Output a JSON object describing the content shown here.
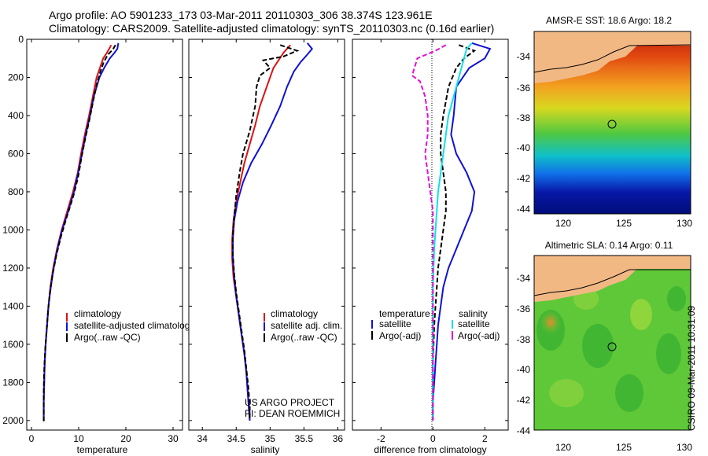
{
  "header": {
    "line1": "Argo profile: AO 5901233_173 03-Mar-2011 20110303_306 38.374S 123.961E",
    "line2": "Climatology: CARS2009. Satellite-adjusted climatology: synTS_20110303.nc (0.16d earlier)"
  },
  "stamp": "CSIRO 09-Mar-2011 10:31:09",
  "colors": {
    "red": "#dd1111",
    "blue": "#1010d8",
    "black": "#000000",
    "cyan": "#10e0e8",
    "magenta": "#e010d8"
  },
  "chart_data": [
    {
      "type": "line",
      "name": "temperature-panel",
      "xlabel": "temperature",
      "xlim": [
        -1,
        32
      ],
      "ylim": [
        0,
        2050
      ],
      "xticks": [
        0,
        10,
        20,
        30
      ],
      "yticks": [
        0,
        200,
        400,
        600,
        800,
        1000,
        1200,
        1400,
        1600,
        1800,
        2000
      ],
      "legend": [
        "climatology",
        "satellite-adjusted climatology",
        "Argo(..raw -QC)"
      ],
      "series": [
        {
          "name": "climatology",
          "color": "red",
          "dash": "",
          "points": [
            [
              16.9,
              30
            ],
            [
              16.0,
              70
            ],
            [
              15.2,
              100
            ],
            [
              14.5,
              150
            ],
            [
              13.8,
              200
            ],
            [
              13.0,
              300
            ],
            [
              12.2,
              400
            ],
            [
              11.3,
              500
            ],
            [
              10.5,
              600
            ],
            [
              9.8,
              700
            ],
            [
              8.8,
              800
            ],
            [
              7.6,
              900
            ],
            [
              6.4,
              1000
            ],
            [
              5.4,
              1100
            ],
            [
              4.6,
              1200
            ],
            [
              4.0,
              1300
            ],
            [
              3.6,
              1400
            ],
            [
              3.3,
              1500
            ],
            [
              3.0,
              1600
            ],
            [
              2.8,
              1700
            ],
            [
              2.7,
              1800
            ],
            [
              2.6,
              1900
            ],
            [
              2.6,
              2000
            ]
          ]
        },
        {
          "name": "satellite-adjusted climatology",
          "color": "blue",
          "dash": "",
          "points": [
            [
              18.4,
              20
            ],
            [
              18.2,
              50
            ],
            [
              17.6,
              70
            ],
            [
              16.6,
              100
            ],
            [
              15.4,
              150
            ],
            [
              14.4,
              200
            ],
            [
              13.2,
              300
            ],
            [
              12.4,
              400
            ],
            [
              11.5,
              500
            ],
            [
              10.7,
              600
            ],
            [
              9.9,
              700
            ],
            [
              9.0,
              800
            ],
            [
              7.8,
              900
            ],
            [
              6.5,
              1000
            ],
            [
              5.5,
              1100
            ],
            [
              4.7,
              1200
            ],
            [
              4.1,
              1300
            ],
            [
              3.6,
              1400
            ],
            [
              3.3,
              1500
            ],
            [
              3.0,
              1600
            ],
            [
              2.8,
              1700
            ],
            [
              2.7,
              1800
            ],
            [
              2.6,
              1900
            ],
            [
              2.6,
              2000
            ]
          ]
        },
        {
          "name": "Argo(..raw -QC)",
          "color": "black",
          "dash": "6,3",
          "points": [
            [
              17.8,
              30
            ],
            [
              17.2,
              55
            ],
            [
              16.2,
              80
            ],
            [
              15.3,
              120
            ],
            [
              14.6,
              170
            ],
            [
              13.9,
              230
            ],
            [
              13.1,
              320
            ],
            [
              12.3,
              420
            ],
            [
              11.4,
              520
            ],
            [
              10.6,
              620
            ],
            [
              9.9,
              720
            ],
            [
              8.9,
              820
            ],
            [
              7.5,
              930
            ],
            [
              6.3,
              1030
            ],
            [
              5.3,
              1130
            ],
            [
              4.5,
              1230
            ],
            [
              3.9,
              1330
            ],
            [
              3.5,
              1430
            ],
            [
              3.2,
              1530
            ],
            [
              2.9,
              1630
            ],
            [
              2.7,
              1730
            ],
            [
              2.6,
              1830
            ],
            [
              2.6,
              1930
            ],
            [
              2.6,
              2010
            ]
          ]
        }
      ]
    },
    {
      "type": "line",
      "name": "salinity-panel",
      "xlabel": "salinity",
      "xlim": [
        33.8,
        36.1
      ],
      "ylim": [
        0,
        2050
      ],
      "xticks": [
        34,
        34.5,
        35,
        35.5,
        36
      ],
      "legend": [
        "climatology",
        "satellite adj. clim.",
        "Argo(..raw -QC)"
      ],
      "credit": [
        "US ARGO PROJECT",
        "PI: DEAN ROEMMICH"
      ],
      "series": [
        {
          "name": "climatology",
          "color": "red",
          "dash": "",
          "points": [
            [
              35.3,
              30
            ],
            [
              35.2,
              70
            ],
            [
              35.05,
              150
            ],
            [
              34.95,
              250
            ],
            [
              34.85,
              350
            ],
            [
              34.78,
              450
            ],
            [
              34.7,
              550
            ],
            [
              34.62,
              650
            ],
            [
              34.56,
              750
            ],
            [
              34.5,
              850
            ],
            [
              34.46,
              950
            ],
            [
              34.44,
              1050
            ],
            [
              34.44,
              1150
            ],
            [
              34.46,
              1250
            ],
            [
              34.5,
              1350
            ],
            [
              34.54,
              1450
            ],
            [
              34.58,
              1550
            ],
            [
              34.62,
              1650
            ],
            [
              34.65,
              1750
            ],
            [
              34.67,
              1850
            ],
            [
              34.69,
              1950
            ],
            [
              34.7,
              2000
            ]
          ]
        },
        {
          "name": "satellite adj. clim.",
          "color": "blue",
          "dash": "",
          "points": [
            [
              35.55,
              20
            ],
            [
              35.62,
              50
            ],
            [
              35.55,
              80
            ],
            [
              35.45,
              120
            ],
            [
              35.35,
              170
            ],
            [
              35.25,
              250
            ],
            [
              35.15,
              350
            ],
            [
              35.02,
              450
            ],
            [
              34.88,
              550
            ],
            [
              34.72,
              650
            ],
            [
              34.6,
              750
            ],
            [
              34.52,
              850
            ],
            [
              34.47,
              950
            ],
            [
              34.45,
              1050
            ],
            [
              34.45,
              1150
            ],
            [
              34.47,
              1250
            ],
            [
              34.5,
              1350
            ],
            [
              34.54,
              1450
            ],
            [
              34.58,
              1550
            ],
            [
              34.62,
              1650
            ],
            [
              34.65,
              1750
            ],
            [
              34.67,
              1850
            ],
            [
              34.69,
              1950
            ],
            [
              34.7,
              2000
            ]
          ]
        },
        {
          "name": "Argo(..raw -QC)",
          "color": "black",
          "dash": "6,3",
          "points": [
            [
              35.15,
              30
            ],
            [
              35.4,
              60
            ],
            [
              35.2,
              90
            ],
            [
              34.9,
              110
            ],
            [
              35.0,
              150
            ],
            [
              34.85,
              190
            ],
            [
              34.8,
              250
            ],
            [
              34.78,
              350
            ],
            [
              34.7,
              480
            ],
            [
              34.6,
              600
            ],
            [
              34.55,
              700
            ],
            [
              34.5,
              820
            ],
            [
              34.47,
              930
            ],
            [
              34.45,
              1030
            ],
            [
              34.45,
              1130
            ],
            [
              34.47,
              1230
            ],
            [
              34.5,
              1330
            ],
            [
              34.54,
              1430
            ],
            [
              34.58,
              1530
            ],
            [
              34.62,
              1630
            ],
            [
              34.65,
              1730
            ],
            [
              34.68,
              1830
            ],
            [
              34.7,
              1930
            ],
            [
              34.7,
              2000
            ]
          ]
        }
      ]
    },
    {
      "type": "line",
      "name": "difference-panel",
      "xlabel": "difference from climatology",
      "xlim": [
        -3.1,
        2.9
      ],
      "ylim": [
        0,
        2050
      ],
      "xticks": [
        -2,
        0,
        2
      ],
      "legend_left": {
        "title": "temperature",
        "items": [
          "satellite",
          "Argo(-adj)"
        ]
      },
      "legend_right": {
        "title": "salinity",
        "items": [
          "satellite",
          "Argo(-adj)"
        ]
      },
      "series": [
        {
          "name": "temperature satellite",
          "color": "blue",
          "dash": "",
          "points": [
            [
              1.5,
              20
            ],
            [
              2.2,
              50
            ],
            [
              2.0,
              100
            ],
            [
              1.4,
              150
            ],
            [
              0.9,
              250
            ],
            [
              0.8,
              400
            ],
            [
              0.7,
              500
            ],
            [
              0.9,
              600
            ],
            [
              1.3,
              700
            ],
            [
              1.6,
              800
            ],
            [
              1.5,
              900
            ],
            [
              1.2,
              1000
            ],
            [
              0.9,
              1100
            ],
            [
              0.6,
              1200
            ],
            [
              0.4,
              1300
            ],
            [
              0.3,
              1400
            ],
            [
              0.2,
              1500
            ],
            [
              0.15,
              1600
            ],
            [
              0.1,
              1700
            ],
            [
              0.05,
              1800
            ],
            [
              0.0,
              1900
            ],
            [
              0.0,
              2000
            ]
          ]
        },
        {
          "name": "temperature Argo(-adj)",
          "color": "black",
          "dash": "6,3",
          "points": [
            [
              1.0,
              30
            ],
            [
              1.6,
              60
            ],
            [
              1.2,
              100
            ],
            [
              0.9,
              150
            ],
            [
              0.6,
              250
            ],
            [
              0.4,
              400
            ],
            [
              0.3,
              500
            ],
            [
              0.3,
              600
            ],
            [
              0.4,
              700
            ],
            [
              0.5,
              800
            ],
            [
              0.5,
              900
            ],
            [
              0.4,
              1000
            ],
            [
              0.3,
              1100
            ],
            [
              0.2,
              1200
            ],
            [
              0.15,
              1300
            ],
            [
              0.1,
              1400
            ],
            [
              0.05,
              1500
            ],
            [
              0.0,
              1700
            ],
            [
              0.0,
              2000
            ]
          ]
        },
        {
          "name": "salinity satellite",
          "color": "cyan",
          "dash": "",
          "points": [
            [
              1.5,
              20
            ],
            [
              1.3,
              50
            ],
            [
              1.2,
              100
            ],
            [
              1.1,
              150
            ],
            [
              0.8,
              300
            ],
            [
              0.6,
              400
            ],
            [
              0.5,
              500
            ],
            [
              0.4,
              600
            ],
            [
              0.3,
              700
            ],
            [
              0.2,
              800
            ],
            [
              0.15,
              900
            ],
            [
              0.1,
              1000
            ],
            [
              0.05,
              1100
            ],
            [
              0.0,
              1300
            ],
            [
              0.0,
              2000
            ]
          ]
        },
        {
          "name": "salinity Argo(-adj)",
          "color": "magenta",
          "dash": "6,3",
          "points": [
            [
              0.5,
              30
            ],
            [
              0.1,
              60
            ],
            [
              -0.6,
              100
            ],
            [
              -0.8,
              190
            ],
            [
              -0.5,
              220
            ],
            [
              -0.3,
              300
            ],
            [
              -0.2,
              400
            ],
            [
              -0.2,
              500
            ],
            [
              -0.3,
              600
            ],
            [
              -0.2,
              700
            ],
            [
              -0.1,
              800
            ],
            [
              0.0,
              900
            ],
            [
              0.0,
              2000
            ]
          ]
        }
      ]
    }
  ],
  "maps": [
    {
      "name": "sst-map",
      "title": "AMSR-E SST: 18.6  Argo: 18.2",
      "xlabels": [
        "120",
        "125",
        "130"
      ],
      "ylabels": [
        "-34",
        "-36",
        "-38",
        "-40",
        "-42",
        "-44"
      ],
      "marker": [
        123.96,
        -38.37
      ]
    },
    {
      "name": "sla-map",
      "title": "Altimetric SLA: 0.14  Argo: 0.11",
      "xlabels": [
        "120",
        "125",
        "130"
      ],
      "ylabels": [
        "-34",
        "-36",
        "-38",
        "-40",
        "-42",
        "-44"
      ],
      "marker": [
        123.96,
        -38.37
      ]
    }
  ]
}
